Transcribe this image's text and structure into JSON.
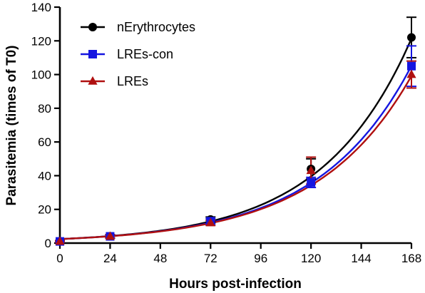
{
  "chart_data": {
    "type": "scatter",
    "xlabel": "Hours post-infection",
    "ylabel": "Parasitemia (times of T0)",
    "xlim": [
      0,
      168
    ],
    "ylim": [
      0,
      140
    ],
    "xticks": [
      0,
      24,
      48,
      72,
      96,
      120,
      144,
      168
    ],
    "yticks": [
      0,
      20,
      40,
      60,
      80,
      100,
      120,
      140
    ],
    "grid": false,
    "legend_position": "top-left",
    "series": [
      {
        "name": "nErythrocytes",
        "color": "#000000",
        "marker": "circle",
        "x": [
          0,
          24,
          72,
          120,
          168
        ],
        "y": [
          1,
          4,
          14,
          44,
          122
        ],
        "error": [
          0.5,
          1,
          1.5,
          6,
          12
        ],
        "fit": {
          "a": 2.4,
          "k": 0.02335
        }
      },
      {
        "name": "LREs-con",
        "color": "#1515e0",
        "marker": "square",
        "x": [
          0,
          24,
          72,
          120,
          168
        ],
        "y": [
          1,
          4,
          13,
          36,
          105
        ],
        "error": [
          0.5,
          1,
          1.5,
          3,
          12
        ],
        "fit": {
          "a": 2.4,
          "k": 0.0225
        }
      },
      {
        "name": "LREs",
        "color": "#b01010",
        "marker": "triangle",
        "x": [
          0,
          24,
          72,
          120,
          168
        ],
        "y": [
          1,
          4,
          12,
          43,
          100
        ],
        "error": [
          0.5,
          1,
          1.5,
          8,
          8
        ],
        "fit": {
          "a": 2.4,
          "k": 0.02215
        }
      }
    ]
  }
}
